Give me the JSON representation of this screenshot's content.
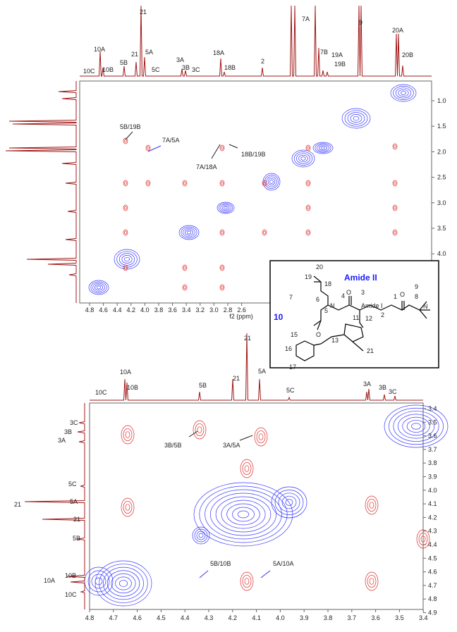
{
  "top_panel": {
    "peak_labels": [
      "10C",
      "10B",
      "10A",
      "5B",
      "21",
      "21",
      "5A",
      "5C",
      "3A",
      "3B",
      "3C",
      "18A",
      "18B",
      "2",
      "7A",
      "7B",
      "19A",
      "19B",
      "9",
      "20A",
      "20B"
    ],
    "annotations": [
      "5B/19B",
      "7A/5A",
      "7A/18A",
      "18B/19B"
    ],
    "right_ticks": [
      "1.0",
      "1.5",
      "2.0",
      "2.5",
      "3.0",
      "3.5",
      "4.0"
    ],
    "bottom_ticks": [
      "4.8",
      "4.6",
      "4.4",
      "4.2",
      "4.0",
      "3.8",
      "3.6",
      "3.4",
      "3.2",
      "3.0",
      "2.8",
      "2.6"
    ],
    "axis_label": "f2 (ppm)"
  },
  "structure": {
    "labels": [
      "20",
      "19",
      "18",
      "Amide II",
      "3",
      "9",
      "8",
      "7",
      "6",
      "5",
      "4",
      "1",
      "2",
      "O",
      "O",
      "O",
      "N",
      "N",
      "Amide I",
      "10",
      "12",
      "11",
      "15",
      "13",
      "16",
      "21",
      "17",
      "N",
      "N"
    ]
  },
  "bottom_panel": {
    "peak_labels": [
      "10C",
      "10A",
      "10B",
      "5B",
      "21",
      "21",
      "5A",
      "5C",
      "3A",
      "3B",
      "3C"
    ],
    "left_labels": [
      "3C",
      "3B",
      "3A",
      "5C",
      "5A",
      "21",
      "21",
      "5B",
      "10A",
      "10B",
      "10C"
    ],
    "annotations": [
      "3B/5B",
      "3A/5A",
      "5B/10B",
      "5A/10A"
    ],
    "right_ticks": [
      "3.4",
      "3.5",
      "3.6",
      "3.7",
      "3.8",
      "3.9",
      "4.0",
      "4.1",
      "4.2",
      "4.3",
      "4.4",
      "4.5",
      "4.6",
      "4.7",
      "4.8",
      "4.9"
    ],
    "bottom_ticks": [
      "4.8",
      "4.7",
      "4.6",
      "4.5",
      "4.4",
      "4.3",
      "4.2",
      "4.1",
      "4.0",
      "3.9",
      "3.8",
      "3.7",
      "3.6",
      "3.5",
      "3.4"
    ]
  }
}
